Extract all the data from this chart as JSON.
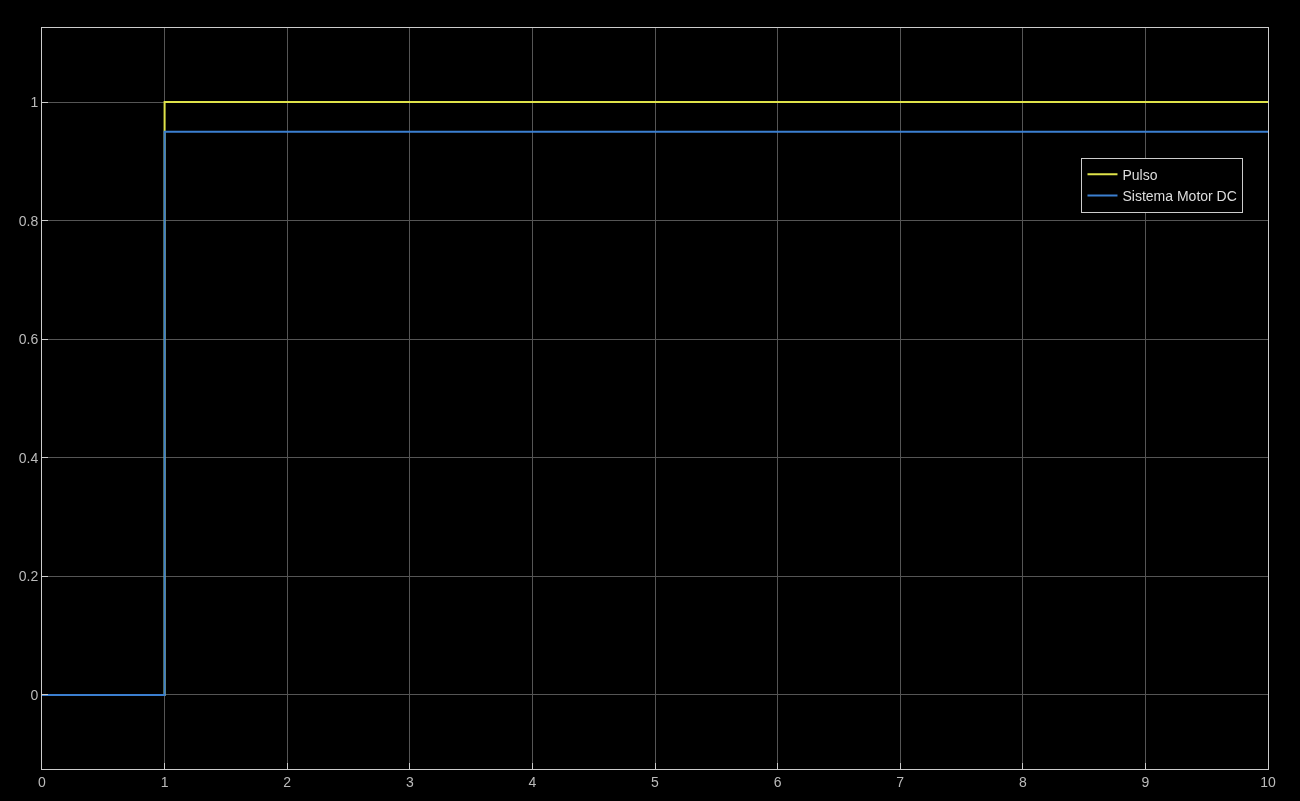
{
  "chart_data": {
    "type": "line",
    "xlim": [
      0,
      10
    ],
    "ylim": [
      -0.125,
      1.125
    ],
    "xticks": [
      0,
      1,
      2,
      3,
      4,
      5,
      6,
      7,
      8,
      9,
      10
    ],
    "yticks": [
      0,
      0.2,
      0.4,
      0.6,
      0.8,
      1
    ],
    "grid": true,
    "legend": "top right",
    "series": [
      {
        "name": "Pulso",
        "type": "step",
        "color": "#dfe34a",
        "x": [
          0,
          1,
          10
        ],
        "values": [
          0,
          1,
          1
        ]
      },
      {
        "name": "Sistema Motor DC",
        "color": "#3b7fd0",
        "x": [
          0,
          1,
          1,
          10
        ],
        "values": [
          0,
          0,
          0.95,
          0.95
        ]
      }
    ]
  }
}
